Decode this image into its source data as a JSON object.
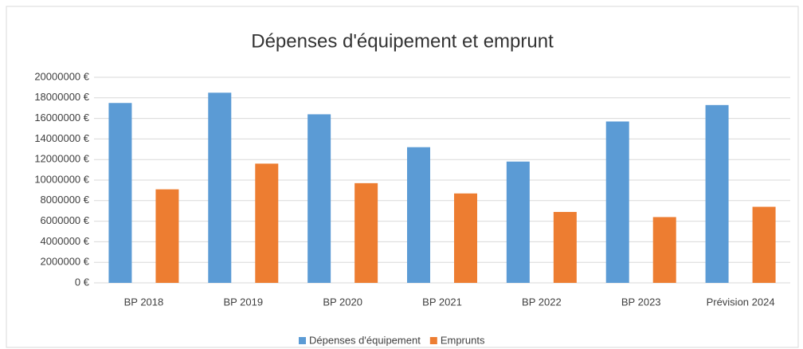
{
  "chart_data": {
    "type": "bar",
    "title": "Dépenses d'équipement et emprunt",
    "categories": [
      "BP 2018",
      "BP 2019",
      "BP 2020",
      "BP 2021",
      "BP 2022",
      "BP 2023",
      "Prévision 2024"
    ],
    "series": [
      {
        "name": "Dépenses d'équipement",
        "color": "#5b9bd5",
        "values": [
          17500000,
          18500000,
          16400000,
          13200000,
          11800000,
          15700000,
          17300000
        ]
      },
      {
        "name": "Emprunts",
        "color": "#ed7d31",
        "values": [
          9100000,
          11600000,
          9700000,
          8700000,
          6900000,
          6400000,
          7400000
        ]
      }
    ],
    "ylim": [
      0,
      20000000
    ],
    "yticks": [
      {
        "value": 0,
        "label": "0 €"
      },
      {
        "value": 2000000,
        "label": "2000000 €"
      },
      {
        "value": 4000000,
        "label": "4000000 €"
      },
      {
        "value": 6000000,
        "label": "6000000 €"
      },
      {
        "value": 8000000,
        "label": "8000000 €"
      },
      {
        "value": 10000000,
        "label": "10000000 €"
      },
      {
        "value": 12000000,
        "label": "12000000 €"
      },
      {
        "value": 14000000,
        "label": "14000000 €"
      },
      {
        "value": 16000000,
        "label": "16000000 €"
      },
      {
        "value": 18000000,
        "label": "18000000 €"
      },
      {
        "value": 20000000,
        "label": "20000000 €"
      }
    ],
    "grid": true,
    "legend": "bottom"
  }
}
